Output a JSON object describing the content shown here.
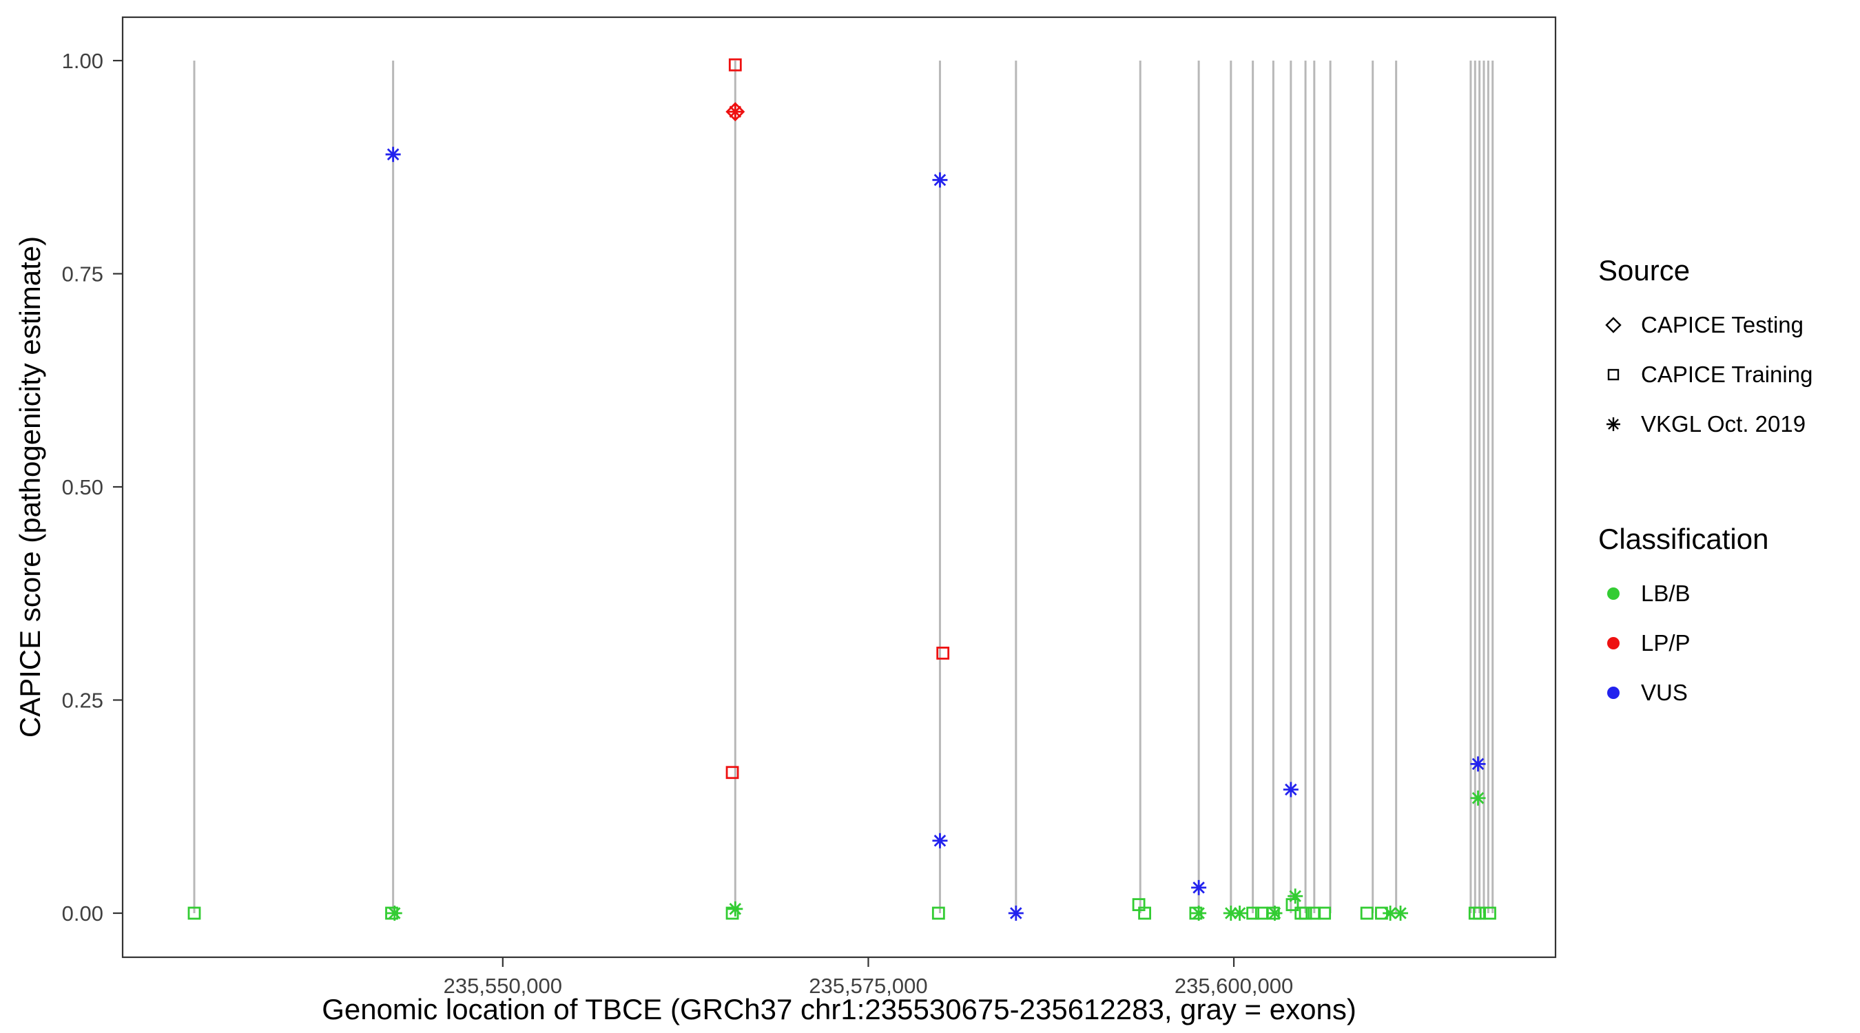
{
  "chart_data": {
    "type": "scatter",
    "title": "",
    "xlabel": "Genomic location of TBCE (GRCh37 chr1:235530675-235612283, gray = exons)",
    "ylabel": "CAPICE score (pathogenicity estimate)",
    "xlim": [
      235524000,
      235622000
    ],
    "ylim": [
      0,
      1
    ],
    "x_ticks": [
      {
        "value": 235550000,
        "label": "235,550,000"
      },
      {
        "value": 235575000,
        "label": "235,575,000"
      },
      {
        "value": 235600000,
        "label": "235,600,000"
      }
    ],
    "y_ticks": [
      {
        "value": 0.0,
        "label": "0.00"
      },
      {
        "value": 0.25,
        "label": "0.25"
      },
      {
        "value": 0.5,
        "label": "0.50"
      },
      {
        "value": 0.75,
        "label": "0.75"
      },
      {
        "value": 1.0,
        "label": "1.00"
      }
    ],
    "exon_color": "#B8B8B8",
    "exons": [
      235528900,
      235542500,
      235565900,
      235579900,
      235585100,
      235593600,
      235597600,
      235599800,
      235601300,
      235602700,
      235603900,
      235604900,
      235605500,
      235606600,
      235609500,
      235611100,
      235616200,
      235616500,
      235616800,
      235617100,
      235617400,
      235617700
    ],
    "colors": {
      "LB/B": "#33CC33",
      "LP/P": "#EE1111",
      "VUS": "#2222EE"
    },
    "shapes": {
      "CAPICE Testing": "diamond",
      "CAPICE Training": "square",
      "VKGL Oct. 2019": "asterisk"
    },
    "legend": {
      "source_title": "Source",
      "source_items": [
        {
          "label": "CAPICE Testing",
          "shape": "diamond"
        },
        {
          "label": "CAPICE Training",
          "shape": "square"
        },
        {
          "label": "VKGL Oct. 2019",
          "shape": "asterisk"
        }
      ],
      "classification_title": "Classification",
      "classification_items": [
        {
          "label": "LB/B",
          "color": "#33CC33"
        },
        {
          "label": "LP/P",
          "color": "#EE1111"
        },
        {
          "label": "VUS",
          "color": "#2222EE"
        }
      ]
    },
    "points": [
      {
        "x": 235528900,
        "y": 0.0,
        "source": "CAPICE Training",
        "classification": "LB/B"
      },
      {
        "x": 235542400,
        "y": 0.0,
        "source": "CAPICE Training",
        "classification": "LB/B"
      },
      {
        "x": 235542600,
        "y": 0.0,
        "source": "VKGL Oct. 2019",
        "classification": "LB/B"
      },
      {
        "x": 235542500,
        "y": 0.89,
        "source": "VKGL Oct. 2019",
        "classification": "VUS"
      },
      {
        "x": 235565900,
        "y": 0.995,
        "source": "CAPICE Training",
        "classification": "LP/P"
      },
      {
        "x": 235565900,
        "y": 0.94,
        "source": "CAPICE Testing",
        "classification": "LP/P"
      },
      {
        "x": 235565900,
        "y": 0.94,
        "source": "VKGL Oct. 2019",
        "classification": "LP/P"
      },
      {
        "x": 235565700,
        "y": 0.165,
        "source": "CAPICE Training",
        "classification": "LP/P"
      },
      {
        "x": 235565900,
        "y": 0.005,
        "source": "VKGL Oct. 2019",
        "classification": "LB/B"
      },
      {
        "x": 235565700,
        "y": 0.0,
        "source": "CAPICE Training",
        "classification": "LB/B"
      },
      {
        "x": 235579900,
        "y": 0.86,
        "source": "VKGL Oct. 2019",
        "classification": "VUS"
      },
      {
        "x": 235580100,
        "y": 0.305,
        "source": "CAPICE Training",
        "classification": "LP/P"
      },
      {
        "x": 235579900,
        "y": 0.085,
        "source": "VKGL Oct. 2019",
        "classification": "VUS"
      },
      {
        "x": 235579800,
        "y": 0.0,
        "source": "CAPICE Training",
        "classification": "LB/B"
      },
      {
        "x": 235585100,
        "y": 0.0,
        "source": "VKGL Oct. 2019",
        "classification": "VUS"
      },
      {
        "x": 235593500,
        "y": 0.01,
        "source": "CAPICE Training",
        "classification": "LB/B"
      },
      {
        "x": 235593900,
        "y": 0.0,
        "source": "CAPICE Training",
        "classification": "LB/B"
      },
      {
        "x": 235597600,
        "y": 0.03,
        "source": "VKGL Oct. 2019",
        "classification": "VUS"
      },
      {
        "x": 235597400,
        "y": 0.0,
        "source": "CAPICE Training",
        "classification": "LB/B"
      },
      {
        "x": 235597600,
        "y": 0.0,
        "source": "VKGL Oct. 2019",
        "classification": "LB/B"
      },
      {
        "x": 235599800,
        "y": 0.0,
        "source": "VKGL Oct. 2019",
        "classification": "LB/B"
      },
      {
        "x": 235600400,
        "y": 0.0,
        "source": "VKGL Oct. 2019",
        "classification": "LB/B"
      },
      {
        "x": 235601300,
        "y": 0.0,
        "source": "CAPICE Training",
        "classification": "LB/B"
      },
      {
        "x": 235601900,
        "y": 0.0,
        "source": "CAPICE Training",
        "classification": "LB/B"
      },
      {
        "x": 235602700,
        "y": 0.0,
        "source": "CAPICE Training",
        "classification": "LB/B"
      },
      {
        "x": 235602800,
        "y": 0.0,
        "source": "VKGL Oct. 2019",
        "classification": "LB/B"
      },
      {
        "x": 235603900,
        "y": 0.145,
        "source": "VKGL Oct. 2019",
        "classification": "VUS"
      },
      {
        "x": 235604000,
        "y": 0.01,
        "source": "CAPICE Training",
        "classification": "LB/B"
      },
      {
        "x": 235604200,
        "y": 0.02,
        "source": "VKGL Oct. 2019",
        "classification": "LB/B"
      },
      {
        "x": 235604600,
        "y": 0.0,
        "source": "CAPICE Training",
        "classification": "LB/B"
      },
      {
        "x": 235604900,
        "y": 0.0,
        "source": "CAPICE Training",
        "classification": "LB/B"
      },
      {
        "x": 235605500,
        "y": 0.0,
        "source": "CAPICE Training",
        "classification": "LB/B"
      },
      {
        "x": 235606200,
        "y": 0.0,
        "source": "CAPICE Training",
        "classification": "LB/B"
      },
      {
        "x": 235609100,
        "y": 0.0,
        "source": "CAPICE Training",
        "classification": "LB/B"
      },
      {
        "x": 235610100,
        "y": 0.0,
        "source": "CAPICE Training",
        "classification": "LB/B"
      },
      {
        "x": 235610700,
        "y": 0.0,
        "source": "VKGL Oct. 2019",
        "classification": "LB/B"
      },
      {
        "x": 235611400,
        "y": 0.0,
        "source": "VKGL Oct. 2019",
        "classification": "LB/B"
      },
      {
        "x": 235616500,
        "y": 0.0,
        "source": "CAPICE Training",
        "classification": "LB/B"
      },
      {
        "x": 235616800,
        "y": 0.0,
        "source": "CAPICE Training",
        "classification": "LB/B"
      },
      {
        "x": 235617500,
        "y": 0.0,
        "source": "CAPICE Training",
        "classification": "LB/B"
      },
      {
        "x": 235616700,
        "y": 0.175,
        "source": "VKGL Oct. 2019",
        "classification": "VUS"
      },
      {
        "x": 235616700,
        "y": 0.135,
        "source": "VKGL Oct. 2019",
        "classification": "LB/B"
      }
    ]
  }
}
